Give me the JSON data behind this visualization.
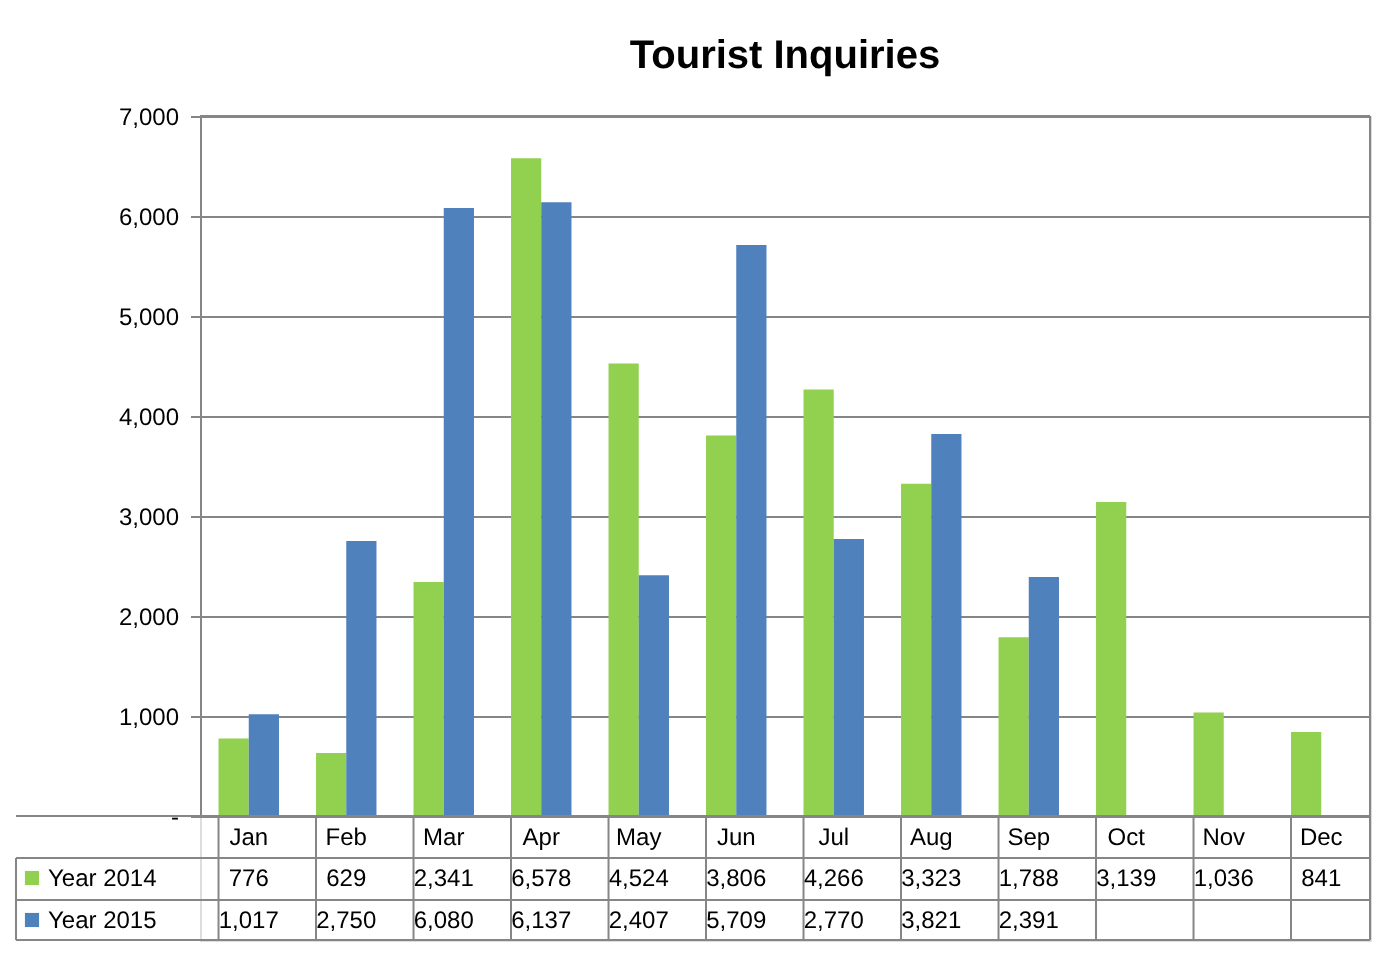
{
  "chart_data": {
    "type": "bar",
    "title": "Tourist Inquiries",
    "categories": [
      "Jan",
      "Feb",
      "Mar",
      "Apr",
      "May",
      "Jun",
      "Jul",
      "Aug",
      "Sep",
      "Oct",
      "Nov",
      "Dec"
    ],
    "series": [
      {
        "name": "Year 2014",
        "color": "#92d050",
        "values": [
          776,
          629,
          2341,
          6578,
          4524,
          3806,
          4266,
          3323,
          1788,
          3139,
          1036,
          841
        ],
        "value_labels": [
          "776",
          "629",
          "2,341",
          "6,578",
          "4,524",
          "3,806",
          "4,266",
          "3,323",
          "1,788",
          "3,139",
          "1,036",
          "841"
        ]
      },
      {
        "name": "Year 2015",
        "color": "#4f81bd",
        "values": [
          1017,
          2750,
          6080,
          6137,
          2407,
          5709,
          2770,
          3821,
          2391,
          null,
          null,
          null
        ],
        "value_labels": [
          "1,017",
          "2,750",
          "6,080",
          "6,137",
          "2,407",
          "5,709",
          "2,770",
          "3,821",
          "2,391",
          null,
          null,
          null
        ]
      }
    ],
    "ylim": [
      0,
      7000
    ],
    "yticks": [
      {
        "value": 0,
        "label": "-"
      },
      {
        "value": 1000,
        "label": "1,000"
      },
      {
        "value": 2000,
        "label": "2,000"
      },
      {
        "value": 3000,
        "label": "3,000"
      },
      {
        "value": 4000,
        "label": "4,000"
      },
      {
        "value": 5000,
        "label": "5,000"
      },
      {
        "value": 6000,
        "label": "6,000"
      },
      {
        "value": 7000,
        "label": "7,000"
      }
    ],
    "grid": "y",
    "legend": "bottom left"
  }
}
